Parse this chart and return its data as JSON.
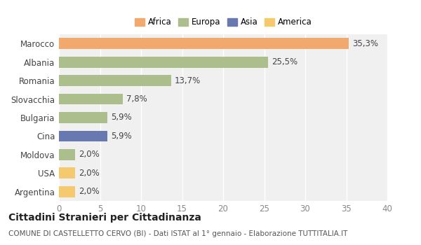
{
  "categories": [
    "Marocco",
    "Albania",
    "Romania",
    "Slovacchia",
    "Bulgaria",
    "Cina",
    "Moldova",
    "USA",
    "Argentina"
  ],
  "values": [
    35.3,
    25.5,
    13.7,
    7.8,
    5.9,
    5.9,
    2.0,
    2.0,
    2.0
  ],
  "labels": [
    "35,3%",
    "25,5%",
    "13,7%",
    "7,8%",
    "5,9%",
    "5,9%",
    "2,0%",
    "2,0%",
    "2,0%"
  ],
  "colors": [
    "#F2A96E",
    "#ABBE8B",
    "#ABBE8B",
    "#ABBE8B",
    "#ABBE8B",
    "#6878B0",
    "#ABBE8B",
    "#F5CA6E",
    "#F5CA6E"
  ],
  "legend": [
    {
      "label": "Africa",
      "color": "#F2A96E"
    },
    {
      "label": "Europa",
      "color": "#ABBE8B"
    },
    {
      "label": "Asia",
      "color": "#6878B0"
    },
    {
      "label": "America",
      "color": "#F5CA6E"
    }
  ],
  "xlim": [
    0,
    40
  ],
  "xticks": [
    0,
    5,
    10,
    15,
    20,
    25,
    30,
    35,
    40
  ],
  "title": "Cittadini Stranieri per Cittadinanza",
  "subtitle": "COMUNE DI CASTELLETTO CERVO (BI) - Dati ISTAT al 1° gennaio - Elaborazione TUTTITALIA.IT",
  "background_color": "#ffffff",
  "plot_bg_color": "#f0f0f0",
  "grid_color": "#ffffff",
  "bar_height": 0.6,
  "title_fontsize": 10,
  "subtitle_fontsize": 7.5,
  "tick_fontsize": 8.5,
  "label_fontsize": 8.5
}
